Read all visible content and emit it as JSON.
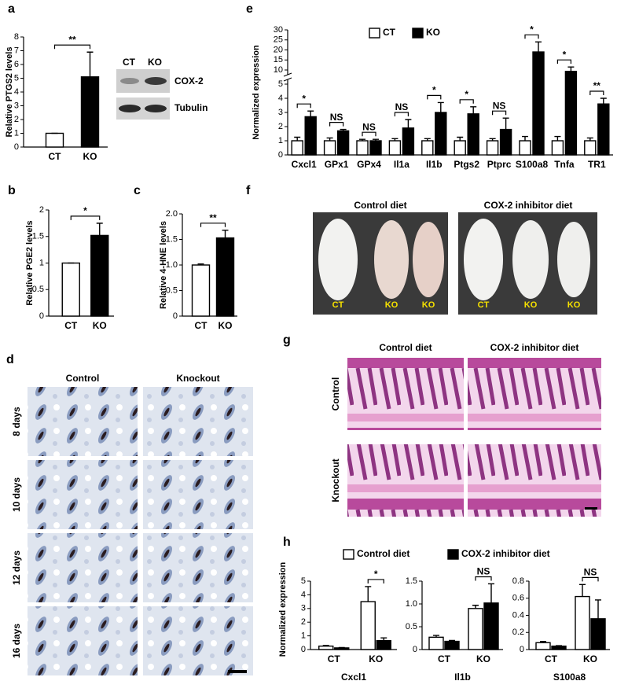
{
  "panel_labels": [
    "a",
    "b",
    "c",
    "d",
    "e",
    "f",
    "g",
    "h"
  ],
  "chart_data": [
    {
      "type": "bar",
      "ylabel": "Relative PTGS2 levels",
      "categories": [
        "CT",
        "KO"
      ],
      "values": [
        1,
        5.1
      ],
      "errors": [
        0,
        1.8
      ],
      "colors": [
        "#ffffff",
        "#000000"
      ],
      "ylim": [
        0,
        8
      ],
      "yticks": [
        0,
        1,
        2,
        3,
        4,
        5,
        6,
        7,
        8
      ],
      "significance": "**"
    },
    {
      "type": "bar",
      "ylabel": "Relative PGE2 levels",
      "categories": [
        "CT",
        "KO"
      ],
      "values": [
        1,
        1.52
      ],
      "errors": [
        0,
        0.23
      ],
      "colors": [
        "#ffffff",
        "#000000"
      ],
      "ylim": [
        0,
        2
      ],
      "yticks": [
        0,
        0.5,
        1,
        1.5,
        2
      ],
      "significance": "*"
    },
    {
      "type": "bar",
      "ylabel": "Relative 4-HNE levels",
      "categories": [
        "CT",
        "KO"
      ],
      "values": [
        1,
        1.53
      ],
      "errors": [
        0.02,
        0.15
      ],
      "colors": [
        "#ffffff",
        "#000000"
      ],
      "ylim": [
        0,
        2
      ],
      "yticks": [
        0,
        0.5,
        {
          "value": 1,
          "label": "1.0"
        },
        1.5,
        {
          "value": 2,
          "label": "2.0"
        }
      ],
      "significance": "**"
    },
    {
      "type": "bar",
      "ylabel": "Normalized expression",
      "categories": [
        "Cxcl1",
        "GPx1",
        "GPx4",
        "Il1a",
        "Il1b",
        "Ptgs2",
        "Ptprc",
        "S100a8",
        "Tnfa",
        "TR1"
      ],
      "series": [
        {
          "name": "CT",
          "color": "#ffffff",
          "values": [
            1,
            1,
            1,
            1,
            1,
            1,
            1,
            1,
            1,
            1
          ],
          "errors": [
            0.25,
            0.2,
            0.1,
            0.15,
            0.15,
            0.25,
            0.15,
            0.3,
            0.3,
            0.2
          ]
        },
        {
          "name": "KO",
          "color": "#000000",
          "values": [
            2.7,
            1.7,
            1,
            1.9,
            3,
            2.9,
            1.8,
            19,
            9.5,
            3.6
          ],
          "errors": [
            0.4,
            0.1,
            0.1,
            0.6,
            0.7,
            0.5,
            0.8,
            5,
            2,
            0.4
          ]
        }
      ],
      "ylim": [
        0,
        30
      ],
      "axis_break": [
        5,
        10
      ],
      "yticks": [
        0,
        1,
        2,
        3,
        4,
        5,
        10,
        15,
        20,
        25,
        30
      ],
      "significance": [
        "*",
        "NS",
        "NS",
        "NS",
        "*",
        "*",
        "NS",
        "*",
        "*",
        "**"
      ]
    },
    {
      "type": "bar",
      "ylabel": "Normalized expression",
      "xlabel": "Cxcl1",
      "categories": [
        "CT",
        "KO"
      ],
      "series": [
        {
          "name": "Control diet",
          "color": "#ffffff",
          "values": [
            0.25,
            3.5
          ],
          "errors": [
            0.05,
            1.1
          ]
        },
        {
          "name": "COX-2 inhibitor diet",
          "color": "#000000",
          "values": [
            0.12,
            0.65
          ],
          "errors": [
            0.03,
            0.2
          ]
        }
      ],
      "ylim": [
        0,
        5
      ],
      "yticks": [
        0,
        1,
        2,
        3,
        4,
        5
      ],
      "significance": [
        null,
        "*"
      ]
    },
    {
      "type": "bar",
      "xlabel": "Il1b",
      "categories": [
        "CT",
        "KO"
      ],
      "series": [
        {
          "color": "#ffffff",
          "values": [
            0.27,
            0.9
          ],
          "errors": [
            0.04,
            0.07
          ]
        },
        {
          "color": "#000000",
          "values": [
            0.18,
            1.02
          ],
          "errors": [
            0.02,
            0.42
          ]
        }
      ],
      "ylim": [
        0,
        1.5
      ],
      "yticks": [
        0,
        0.5,
        {
          "value": 1,
          "label": "1.0"
        },
        1.5
      ],
      "significance": [
        null,
        "NS"
      ]
    },
    {
      "type": "bar",
      "xlabel": "S100a8",
      "categories": [
        "CT",
        "KO"
      ],
      "series": [
        {
          "color": "#ffffff",
          "values": [
            0.08,
            0.62
          ],
          "errors": [
            0.015,
            0.14
          ]
        },
        {
          "color": "#000000",
          "values": [
            0.04,
            0.36
          ],
          "errors": [
            0.005,
            0.22
          ]
        }
      ],
      "ylim": [
        0,
        0.8
      ],
      "yticks": [
        0,
        0.2,
        0.4,
        0.6,
        0.8
      ],
      "significance": [
        null,
        "NS"
      ]
    }
  ],
  "blot": {
    "columns": [
      "CT",
      "KO"
    ],
    "rows": [
      "COX-2",
      "Tubulin"
    ]
  },
  "panel_d": {
    "columns": [
      "Control",
      "Knockout"
    ],
    "rows": [
      "8 days",
      "10 days",
      "12 days",
      "16 days"
    ]
  },
  "panel_f": {
    "groups": [
      {
        "title": "Control diet",
        "labels": [
          "CT",
          "KO",
          "KO"
        ]
      },
      {
        "title": "COX-2 inhibitor diet",
        "labels": [
          "CT",
          "KO",
          "KO"
        ]
      }
    ]
  },
  "panel_g": {
    "columns": [
      "Control diet",
      "COX-2 inhibitor diet"
    ],
    "rows": [
      "Control",
      "Knockout"
    ]
  }
}
